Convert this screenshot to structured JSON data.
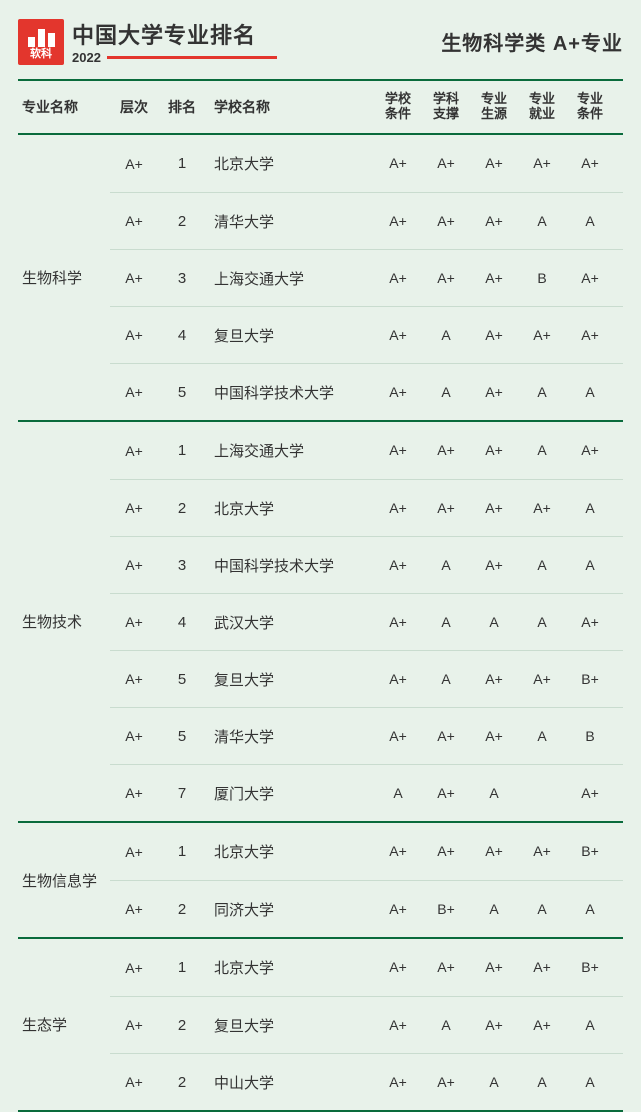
{
  "header": {
    "logo_label": "软科",
    "title": "中国大学专业排名",
    "year": "2022",
    "right": "生物科学类 A+专业"
  },
  "columns": {
    "major": "专业名称",
    "tier": "层次",
    "rank": "排名",
    "school": "学校名称",
    "m1a": "学校",
    "m1b": "条件",
    "m2a": "学科",
    "m2b": "支撑",
    "m3a": "专业",
    "m3b": "生源",
    "m4a": "专业",
    "m4b": "就业",
    "m5a": "专业",
    "m5b": "条件"
  },
  "groups": [
    {
      "major": "生物科学",
      "rows": [
        {
          "tier": "A+",
          "rank": "1",
          "school": "北京大学",
          "m": [
            "A+",
            "A+",
            "A+",
            "A+",
            "A+"
          ]
        },
        {
          "tier": "A+",
          "rank": "2",
          "school": "清华大学",
          "m": [
            "A+",
            "A+",
            "A+",
            "A",
            "A"
          ]
        },
        {
          "tier": "A+",
          "rank": "3",
          "school": "上海交通大学",
          "m": [
            "A+",
            "A+",
            "A+",
            "B",
            "A+"
          ]
        },
        {
          "tier": "A+",
          "rank": "4",
          "school": "复旦大学",
          "m": [
            "A+",
            "A",
            "A+",
            "A+",
            "A+"
          ]
        },
        {
          "tier": "A+",
          "rank": "5",
          "school": "中国科学技术大学",
          "m": [
            "A+",
            "A",
            "A+",
            "A",
            "A"
          ]
        }
      ]
    },
    {
      "major": "生物技术",
      "rows": [
        {
          "tier": "A+",
          "rank": "1",
          "school": "上海交通大学",
          "m": [
            "A+",
            "A+",
            "A+",
            "A",
            "A+"
          ]
        },
        {
          "tier": "A+",
          "rank": "2",
          "school": "北京大学",
          "m": [
            "A+",
            "A+",
            "A+",
            "A+",
            "A"
          ]
        },
        {
          "tier": "A+",
          "rank": "3",
          "school": "中国科学技术大学",
          "m": [
            "A+",
            "A",
            "A+",
            "A",
            "A"
          ]
        },
        {
          "tier": "A+",
          "rank": "4",
          "school": "武汉大学",
          "m": [
            "A+",
            "A",
            "A",
            "A",
            "A+"
          ]
        },
        {
          "tier": "A+",
          "rank": "5",
          "school": "复旦大学",
          "m": [
            "A+",
            "A",
            "A+",
            "A+",
            "B+"
          ]
        },
        {
          "tier": "A+",
          "rank": "5",
          "school": "清华大学",
          "m": [
            "A+",
            "A+",
            "A+",
            "A",
            "B"
          ]
        },
        {
          "tier": "A+",
          "rank": "7",
          "school": "厦门大学",
          "m": [
            "A",
            "A+",
            "A",
            "",
            "A+"
          ]
        }
      ]
    },
    {
      "major": "生物信息学",
      "rows": [
        {
          "tier": "A+",
          "rank": "1",
          "school": "北京大学",
          "m": [
            "A+",
            "A+",
            "A+",
            "A+",
            "B+"
          ]
        },
        {
          "tier": "A+",
          "rank": "2",
          "school": "同济大学",
          "m": [
            "A+",
            "B+",
            "A",
            "A",
            "A"
          ]
        }
      ]
    },
    {
      "major": "生态学",
      "rows": [
        {
          "tier": "A+",
          "rank": "1",
          "school": "北京大学",
          "m": [
            "A+",
            "A+",
            "A+",
            "A+",
            "B+"
          ]
        },
        {
          "tier": "A+",
          "rank": "2",
          "school": "复旦大学",
          "m": [
            "A+",
            "A",
            "A+",
            "A+",
            "A"
          ]
        },
        {
          "tier": "A+",
          "rank": "2",
          "school": "中山大学",
          "m": [
            "A+",
            "A+",
            "A",
            "A",
            "A"
          ]
        }
      ]
    }
  ]
}
